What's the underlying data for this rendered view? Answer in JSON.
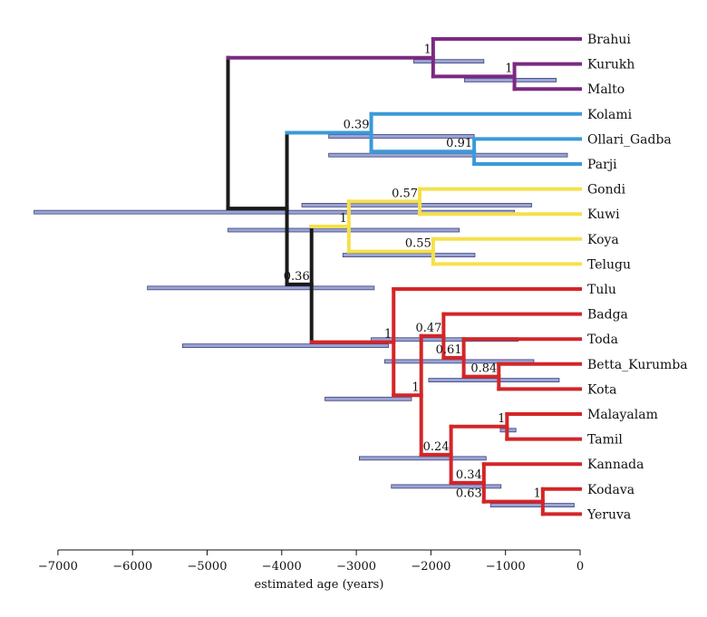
{
  "colors": {
    "north": "#7a2a82",
    "central": "#3a9ad9",
    "south_central": "#f6e04a",
    "south": "#d42528",
    "backbone": "#1a1a1a",
    "hpd_fill": "#8f9ad0",
    "hpd_stroke": "#2a2f6a"
  },
  "axis": {
    "title": "estimated age (years)",
    "min": -7000,
    "max": 0,
    "ticks": [
      {
        "value": -7000,
        "label": "−7000"
      },
      {
        "value": -6000,
        "label": "−6000"
      },
      {
        "value": -5000,
        "label": "−5000"
      },
      {
        "value": -4000,
        "label": "−4000"
      },
      {
        "value": -3000,
        "label": "−3000"
      },
      {
        "value": -2000,
        "label": "−2000"
      },
      {
        "value": -1000,
        "label": "−1000"
      },
      {
        "value": 0,
        "label": "0"
      }
    ]
  },
  "tree": {
    "leaves": [
      {
        "id": "brahui",
        "label": "Brahui"
      },
      {
        "id": "kurukh",
        "label": "Kurukh"
      },
      {
        "id": "malto",
        "label": "Malto"
      },
      {
        "id": "kolami",
        "label": "Kolami"
      },
      {
        "id": "ollari",
        "label": "Ollari_Gadba"
      },
      {
        "id": "parji",
        "label": "Parji"
      },
      {
        "id": "gondi",
        "label": "Gondi"
      },
      {
        "id": "kuwi",
        "label": "Kuwi"
      },
      {
        "id": "koya",
        "label": "Koya"
      },
      {
        "id": "telugu",
        "label": "Telugu"
      },
      {
        "id": "tulu",
        "label": "Tulu"
      },
      {
        "id": "badga",
        "label": "Badga"
      },
      {
        "id": "toda",
        "label": "Toda"
      },
      {
        "id": "betta",
        "label": "Betta_Kurumba"
      },
      {
        "id": "kota",
        "label": "Kota"
      },
      {
        "id": "malayalam",
        "label": "Malayalam"
      },
      {
        "id": "tamil",
        "label": "Tamil"
      },
      {
        "id": "kannada",
        "label": "Kannada"
      },
      {
        "id": "kodava",
        "label": "Kodava"
      },
      {
        "id": "yeruva",
        "label": "Yeruva"
      }
    ],
    "nodes": [
      {
        "id": "root",
        "age": -4720,
        "children": [
          "north",
          "rest"
        ],
        "color": "backbone",
        "hpd": null,
        "support": null
      },
      {
        "id": "north",
        "age": -1970,
        "children": [
          "brahui",
          "kur_mal"
        ],
        "color": "north",
        "hpd": [
          -2230,
          -1290
        ],
        "support": "1"
      },
      {
        "id": "kur_mal",
        "age": -880,
        "children": [
          "kurukh",
          "malto"
        ],
        "color": "north",
        "hpd": [
          -1550,
          -320
        ],
        "support": "1"
      },
      {
        "id": "rest",
        "age": -3930,
        "children": [
          "central",
          "sc_s"
        ],
        "color": "backbone",
        "hpd": [
          -7320,
          -880
        ],
        "support": null
      },
      {
        "id": "central",
        "age": -2800,
        "children": [
          "kolami",
          "oll_par"
        ],
        "color": "central",
        "hpd": [
          -3370,
          -1420
        ],
        "support": "0.39"
      },
      {
        "id": "oll_par",
        "age": -1420,
        "children": [
          "ollari",
          "parji"
        ],
        "color": "central",
        "hpd": [
          -3370,
          -170
        ],
        "support": "0.91"
      },
      {
        "id": "sc_s",
        "age": -3600,
        "children": [
          "sc",
          "south"
        ],
        "color": "backbone",
        "hpd": [
          -5800,
          -2760
        ],
        "support": "0.36"
      },
      {
        "id": "sc",
        "age": -3100,
        "children": [
          "gon_kuw",
          "koy_tel"
        ],
        "color": "south_central",
        "hpd": [
          -4720,
          -1620
        ],
        "support": "1"
      },
      {
        "id": "gon_kuw",
        "age": -2150,
        "children": [
          "gondi",
          "kuwi"
        ],
        "color": "south_central",
        "hpd": [
          -3730,
          -650
        ],
        "support": "0.57"
      },
      {
        "id": "koy_tel",
        "age": -1970,
        "children": [
          "koya",
          "telugu"
        ],
        "color": "south_central",
        "hpd": [
          -3180,
          -1410
        ],
        "support": "0.55"
      },
      {
        "id": "south",
        "age": -2500,
        "children": [
          "tulu",
          "s2"
        ],
        "color": "south",
        "hpd": [
          -5330,
          -2570
        ],
        "support": "1"
      },
      {
        "id": "s2",
        "age": -2130,
        "children": [
          "nilg",
          "sdr"
        ],
        "color": "south",
        "hpd": [
          -3420,
          -2260
        ],
        "support": "1"
      },
      {
        "id": "nilg",
        "age": -1830,
        "children": [
          "badga",
          "toda_grp"
        ],
        "color": "south",
        "hpd": [
          -2800,
          -830
        ],
        "support": "0.47"
      },
      {
        "id": "toda_grp",
        "age": -1560,
        "children": [
          "toda",
          "bk_kota"
        ],
        "color": "south",
        "hpd": [
          -2620,
          -620
        ],
        "support": "0.61"
      },
      {
        "id": "bk_kota",
        "age": -1090,
        "children": [
          "betta",
          "kota"
        ],
        "color": "south",
        "hpd": [
          -2030,
          -280
        ],
        "support": "0.84"
      },
      {
        "id": "sdr",
        "age": -1730,
        "children": [
          "mal_tam",
          "kan_grp"
        ],
        "color": "south",
        "hpd": [
          -2960,
          -1260
        ],
        "support": "0.24"
      },
      {
        "id": "mal_tam",
        "age": -980,
        "children": [
          "malayalam",
          "tamil"
        ],
        "color": "south",
        "hpd": [
          -1070,
          -860
        ],
        "support": "1"
      },
      {
        "id": "kan_grp",
        "age": -1290,
        "children": [
          "kannada",
          "kod_yer"
        ],
        "color": "south",
        "hpd": [
          -2530,
          -1060
        ],
        "support": "0.34"
      },
      {
        "id": "kod_yer",
        "age": -1190,
        "children": [
          "kodava",
          "yeruva"
        ],
        "color": "south",
        "hpd": [
          -2230,
          -540
        ],
        "support": "0.63"
      },
      {
        "id": "kod_yer2",
        "age": -500,
        "children": [],
        "color": "south",
        "hpd": [
          -1200,
          -80
        ],
        "support": "1"
      }
    ]
  }
}
